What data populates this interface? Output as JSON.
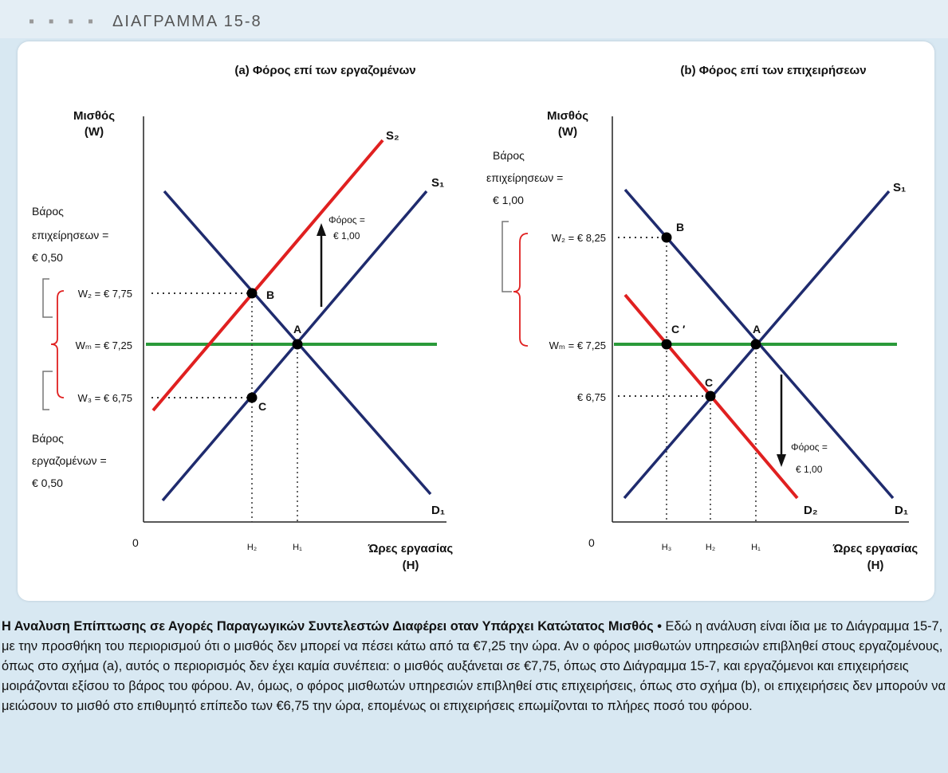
{
  "figure": {
    "label": "ΔΙΑΓΡΑΜΜΑ 15-8",
    "panel_a": {
      "title": "(a) Φόρος επί των εργαζομένων",
      "y_axis_line1": "Μισθός",
      "y_axis_line2": "(W)",
      "x_axis_line1": "Ώρες εργασίας",
      "x_axis_line2": "(H)",
      "origin": "0",
      "tax_line1": "Φόρος =",
      "tax_line2": "€ 1,00",
      "firm_burden_line1": "Βάρος",
      "firm_burden_line2": "επιχείρησεων =",
      "firm_burden_line3": "€ 0,50",
      "worker_burden_line1": "Βάρος",
      "worker_burden_line2": "εργαζομένων =",
      "worker_burden_line3": "€ 0,50",
      "wage_w2": "W₂ = € 7,75",
      "wage_wm": "Wₘ = € 7,25",
      "wage_w3": "W₃ = € 6,75",
      "curve_s2": "S₂",
      "curve_s1": "S₁",
      "curve_d1": "D₁",
      "point_a": "A",
      "point_b": "B",
      "point_c": "C",
      "h2": "H₂",
      "h1": "H₁"
    },
    "panel_b": {
      "title": "(b) Φόρος επί των επιχειρήσεων",
      "y_axis_line1": "Μισθός",
      "y_axis_line2": "(W)",
      "x_axis_line1": "Ώρες εργασίας",
      "x_axis_line2": "(H)",
      "origin": "0",
      "firm_burden_line1": "Βάρος",
      "firm_burden_line2": "επιχείρησεων =",
      "firm_burden_line3": "€ 1,00",
      "wage_w2": "W₂ = € 8,25",
      "wage_wm": "Wₘ = € 7,25",
      "wage_c": "€ 6,75",
      "tax_line1": "Φόρος =",
      "tax_line2": "€ 1,00",
      "curve_s1": "S₁",
      "curve_d1": "D₁",
      "curve_d2": "D₂",
      "point_a": "A",
      "point_b": "B",
      "point_c": "C",
      "point_cprime": "C ′",
      "h3": "H₃",
      "h2": "H₂",
      "h1": "H₁"
    },
    "colors": {
      "supply_demand": "#1f2b6e",
      "shifted_curve": "#e02020",
      "minimum_wage": "#2a9a3a",
      "brace": "#e02020"
    }
  },
  "caption": {
    "title": "Η Αναλυση Επίπτωσης σε Αγορές Παραγωγικών Συντελεστών Διαφέρει οταν Υπάρχει Κατώτατος Μισθός •",
    "body": "Εδώ η ανάλυση είναι ίδια με το Διάγραμμα 15-7, με την προσθήκη του περιορισμού ότι ο μισθός δεν μπορεί να πέσει κάτω από τα €7,25 την ώρα. Αν ο φόρος μισθωτών υπηρεσιών επιβληθεί στους εργαζομένους, όπως στο σχήμα (a), αυτός ο περιορισμός δεν έχει καμία συνέπεια: ο μισθός αυξάνεται σε €7,75, όπως στο Διάγραμμα 15-7, και εργαζόμενοι και επιχειρήσεις μοιράζονται εξίσου το βάρος του φόρου. Αν, όμως, ο φόρος μισθωτών υπηρεσιών επιβληθεί στις επιχειρήσεις, όπως στο σχήμα (b), οι επιχειρήσεις δεν μπορούν να μειώσουν το μισθό στο επιθυμητό επίπεδο των €6,75 την ώρα, επομένως οι επιχειρήσεις επωμίζονται το πλήρες ποσό του φόρου."
  }
}
